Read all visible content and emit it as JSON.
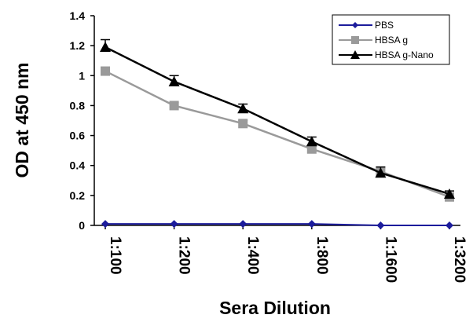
{
  "chart_data": {
    "type": "line",
    "title": "",
    "xlabel": "Sera Dilution",
    "ylabel": "OD at 450 nm",
    "ylim": [
      0,
      1.4
    ],
    "yticks": [
      "0",
      "0.2",
      "0.4",
      "0.6",
      "0.8",
      "1",
      "1.2",
      "1.4"
    ],
    "categories": [
      "1:100",
      "1:200",
      "1:400",
      "1:800",
      "1:1600",
      "1:3200"
    ],
    "grid": false,
    "legend": "top-right",
    "series": [
      {
        "name": "PBS",
        "values": [
          0.01,
          0.01,
          0.01,
          0.01,
          0.0,
          0.0
        ],
        "error": [
          0,
          0,
          0,
          0,
          0,
          0
        ],
        "color": "#1c1c9c",
        "marker": "diamond"
      },
      {
        "name": "HBSA g",
        "values": [
          1.03,
          0.8,
          0.68,
          0.51,
          0.36,
          0.19
        ],
        "error": [
          0.015,
          0.02,
          0.02,
          0.02,
          0.02,
          0.015
        ],
        "color": "#9a9a9a",
        "marker": "square"
      },
      {
        "name": "HBSA g-Nano",
        "values": [
          1.19,
          0.96,
          0.78,
          0.56,
          0.35,
          0.21
        ],
        "error": [
          0.05,
          0.04,
          0.03,
          0.03,
          0.04,
          0.02
        ],
        "color": "#000000",
        "marker": "triangle"
      }
    ]
  }
}
